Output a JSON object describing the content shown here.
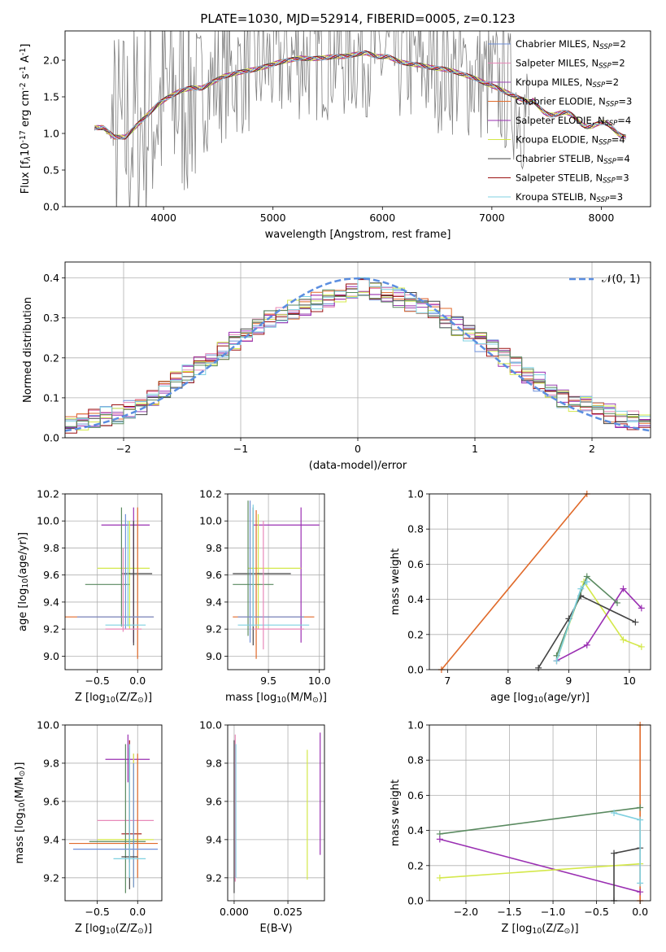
{
  "figure_title": "PLATE=1030, MJD=52914, FIBERID=0005, z=0.123",
  "colors": {
    "chabrier_miles": "#6f8fd8",
    "salpeter_miles": "#e889b9",
    "kroupa_miles": "#9940b0",
    "chabrier_elodie": "#e06a2a",
    "salpeter_elodie": "#9a2fb2",
    "kroupa_elodie": "#d4e84a",
    "chabrier_stelib": "#444444",
    "salpeter_stelib": "#9b1111",
    "kroupa_stelib": "#7fd0e0",
    "data": "#808080",
    "green": "#5a8a60",
    "normal_curve": "#5b8ee0"
  },
  "chart_data": [
    {
      "id": "spectrum",
      "type": "line",
      "title": "PLATE=1030, MJD=52914, FIBERID=0005, z=0.123",
      "xlabel": "wavelength [Angstrom, rest frame]",
      "ylabel": "Flux [f$_\\lambda$10$^{-17}$ erg cm$^{-2}$ s$^{-1}$ A$^{-1}$]",
      "xlim": [
        3100,
        8450
      ],
      "ylim": [
        0,
        2.4
      ],
      "xticks": [
        "4000",
        "5000",
        "6000",
        "7000",
        "8000"
      ],
      "yticks": [
        "0.0",
        "0.5",
        "1.0",
        "1.5",
        "2.0"
      ],
      "legend_position": "top-right",
      "legend": [
        {
          "text": "Chabrier MILES, N",
          "sub": "SSP",
          "suffix": "=2",
          "color": "#6f8fd8"
        },
        {
          "text": "Salpeter MILES, N",
          "sub": "SSP",
          "suffix": "=2",
          "color": "#e889b9"
        },
        {
          "text": "Kroupa MILES, N",
          "sub": "SSP",
          "suffix": "=2",
          "color": "#9940b0"
        },
        {
          "text": "Chabrier ELODIE, N",
          "sub": "SSP",
          "suffix": "=3",
          "color": "#e06a2a"
        },
        {
          "text": "Salpeter ELODIE, N",
          "sub": "SSP",
          "suffix": "=4",
          "color": "#9a2fb2"
        },
        {
          "text": "Kroupa ELODIE, N",
          "sub": "SSP",
          "suffix": "=4",
          "color": "#d4e84a"
        },
        {
          "text": "Chabrier STELIB, N",
          "sub": "SSP",
          "suffix": "=4",
          "color": "#444444"
        },
        {
          "text": "Salpeter STELIB, N",
          "sub": "SSP",
          "suffix": "=3",
          "color": "#9b1111"
        },
        {
          "text": "Kroupa STELIB, N",
          "sub": "SSP",
          "suffix": "=3",
          "color": "#7fd0e0"
        }
      ],
      "series": [
        {
          "name": "data",
          "x": [
            3370,
            3450,
            3550,
            3650,
            3750,
            3850,
            3950,
            4050,
            4150,
            4250,
            4350,
            4450,
            4550,
            4650,
            4750,
            4850,
            4950,
            5050,
            5150,
            5250,
            5350,
            5450,
            5550,
            5650,
            5750,
            5850,
            5950,
            6050,
            6150,
            6250,
            6350,
            6450,
            6550,
            6650,
            6750,
            6850,
            6950,
            7050,
            7150,
            7250,
            7350
          ],
          "y": [
            1.08,
            1.06,
            0.92,
            0.95,
            1.1,
            1.25,
            1.38,
            1.48,
            1.55,
            1.62,
            1.6,
            1.7,
            1.78,
            1.82,
            1.85,
            1.9,
            1.95,
            1.98,
            2.02,
            2.05,
            2.02,
            2.05,
            2.08,
            2.06,
            2.1,
            2.12,
            2.05,
            2.08,
            2.0,
            1.98,
            1.92,
            1.9,
            1.9,
            1.85,
            1.8,
            1.78,
            1.72,
            1.65,
            1.58,
            1.4,
            1.2
          ]
        },
        {
          "name": "model",
          "x": [
            3370,
            3450,
            3550,
            3650,
            3750,
            3850,
            3950,
            4050,
            4150,
            4250,
            4350,
            4450,
            4550,
            4650,
            4750,
            4850,
            4950,
            5050,
            5150,
            5250,
            5350,
            5450,
            5550,
            5650,
            5750,
            5850,
            5950,
            6050,
            6150,
            6250,
            6350,
            6450,
            6550,
            6650,
            6750,
            6850,
            6950,
            7050,
            7150,
            7250,
            7350,
            7450,
            7550,
            7650,
            7750,
            7850,
            7950,
            8050,
            8150,
            8250
          ],
          "y": [
            1.08,
            1.08,
            0.95,
            0.95,
            1.1,
            1.25,
            1.4,
            1.5,
            1.58,
            1.62,
            1.62,
            1.7,
            1.78,
            1.82,
            1.85,
            1.88,
            1.92,
            1.97,
            2.0,
            2.03,
            2.02,
            2.03,
            2.05,
            2.05,
            2.08,
            2.1,
            2.05,
            2.05,
            1.98,
            1.95,
            1.93,
            1.9,
            1.88,
            1.85,
            1.8,
            1.75,
            1.68,
            1.62,
            1.55,
            1.48,
            1.42,
            1.35,
            1.3,
            1.24,
            1.2,
            1.16,
            1.12,
            1.08,
            1.03,
            1.0
          ]
        }
      ]
    },
    {
      "id": "residuals",
      "type": "line",
      "xlabel": "(data-model)/error",
      "ylabel": "Normed distribution",
      "xlim": [
        -2.5,
        2.5
      ],
      "ylim": [
        0,
        0.44
      ],
      "xticks": [
        "−2",
        "−1",
        "0",
        "1",
        "2"
      ],
      "yticks": [
        "0.0",
        "0.1",
        "0.2",
        "0.3",
        "0.4"
      ],
      "legend_position": "top-right",
      "legend_label": "𝒩(0, 1)",
      "bins": [
        -2.5,
        -2.4,
        -2.3,
        -2.2,
        -2.1,
        -2.0,
        -1.9,
        -1.8,
        -1.7,
        -1.6,
        -1.5,
        -1.4,
        -1.3,
        -1.2,
        -1.1,
        -1.0,
        -0.9,
        -0.8,
        -0.7,
        -0.6,
        -0.5,
        -0.4,
        -0.3,
        -0.2,
        -0.1,
        0.0,
        0.1,
        0.2,
        0.3,
        0.4,
        0.5,
        0.6,
        0.7,
        0.8,
        0.9,
        1.0,
        1.1,
        1.2,
        1.3,
        1.4,
        1.5,
        1.6,
        1.7,
        1.8,
        1.9,
        2.0,
        2.1,
        2.2,
        2.3,
        2.4
      ],
      "series": [
        {
          "name": "",
          "values": [
            0.035,
            0.04,
            0.05,
            0.055,
            0.06,
            0.07,
            0.08,
            0.1,
            0.12,
            0.14,
            0.16,
            0.18,
            0.2,
            0.22,
            0.24,
            0.26,
            0.28,
            0.3,
            0.31,
            0.32,
            0.33,
            0.34,
            0.35,
            0.36,
            0.37,
            0.38,
            0.37,
            0.36,
            0.35,
            0.34,
            0.33,
            0.32,
            0.3,
            0.28,
            0.26,
            0.24,
            0.22,
            0.2,
            0.18,
            0.16,
            0.14,
            0.12,
            0.1,
            0.09,
            0.08,
            0.07,
            0.06,
            0.05,
            0.045,
            0.04
          ]
        }
      ],
      "normal_curve": {
        "mean": 0,
        "sigma": 1
      }
    },
    {
      "id": "age_vs_Z",
      "type": "scatter",
      "xlabel": "Z [log$_{10}$(Z/Z$_\\odot$)]",
      "ylabel": "age  [log$_{10}$(age/yr)]",
      "xlim": [
        -0.9,
        0.3
      ],
      "ylim": [
        8.9,
        10.2
      ],
      "xticks": [
        "−0.5",
        "0.0"
      ],
      "yticks": [
        "9.0",
        "9.2",
        "9.4",
        "9.6",
        "9.8",
        "10.0",
        "10.2"
      ]
    },
    {
      "id": "age_vs_mass",
      "type": "scatter",
      "xlabel": "mass [log$_{10}$(M/M$_\\odot$)]",
      "ylabel": "",
      "xlim": [
        9.1,
        10.05
      ],
      "ylim": [
        8.9,
        10.2
      ],
      "xticks": [
        "9.5",
        "10.0"
      ],
      "yticks": [
        "9.0",
        "9.2",
        "9.4",
        "9.6",
        "9.8",
        "10.0",
        "10.2"
      ]
    },
    {
      "id": "mass_weight_vs_age",
      "type": "line",
      "xlabel": "age  [log$_{10}$(age/yr)]",
      "ylabel": "mass weight",
      "xlim": [
        6.7,
        10.35
      ],
      "ylim": [
        0,
        1.0
      ],
      "xticks": [
        "7",
        "8",
        "9",
        "10"
      ],
      "yticks": [
        "0.0",
        "0.2",
        "0.4",
        "0.6",
        "0.8",
        "1.0"
      ]
    },
    {
      "id": "mass_vs_Z",
      "type": "scatter",
      "xlabel": "Z [log$_{10}$(Z/Z$_\\odot$)]",
      "ylabel": "mass [log$_{10}$(M/M$_\\odot$)]",
      "xlim": [
        -0.9,
        0.3
      ],
      "ylim": [
        9.08,
        10.0
      ],
      "xticks": [
        "−0.5",
        "0.0"
      ],
      "yticks": [
        "9.2",
        "9.4",
        "9.6",
        "9.8",
        "10.0"
      ]
    },
    {
      "id": "mass_vs_ebv",
      "type": "scatter",
      "xlabel": "E(B-V)",
      "ylabel": "",
      "xlim": [
        -0.003,
        0.042
      ],
      "ylim": [
        9.08,
        10.0
      ],
      "xticks": [
        "0.000",
        "0.025"
      ],
      "yticks": [
        "9.2",
        "9.4",
        "9.6",
        "9.8",
        "10.0"
      ]
    },
    {
      "id": "mass_weight_vs_Z",
      "type": "line",
      "xlabel": "Z [log$_{10}$(Z/Z$_\\odot$)]",
      "ylabel": "mass weight",
      "xlim": [
        -2.42,
        0.12
      ],
      "ylim": [
        0,
        1.0
      ],
      "xticks": [
        "−2.0",
        "−1.5",
        "−1.0",
        "−0.5",
        "0.0"
      ],
      "yticks": [
        "0.0",
        "0.2",
        "0.4",
        "0.6",
        "0.8",
        "1.0"
      ]
    }
  ]
}
